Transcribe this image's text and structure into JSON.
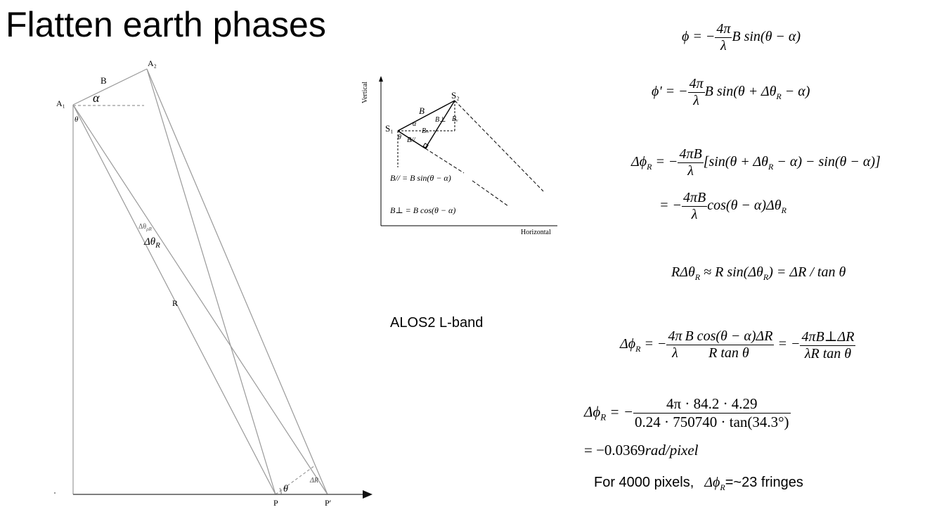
{
  "title": "Flatten earth phases",
  "geometry_diagram": {
    "label_a1": "A₁",
    "label_a2": "A₂",
    "label_b": "B",
    "label_alpha": "α",
    "label_theta_top": "θ",
    "label_dtheta_small": "Δθ",
    "label_dtheta_small_sub": "ρR",
    "label_dtheta": "Δθ",
    "label_dtheta_sub": "R",
    "label_r": "R",
    "label_theta_bottom": "θ",
    "label_dr": "ΔR",
    "label_p": "P",
    "label_p_prime": "P′"
  },
  "baseline_diagram": {
    "axis_vertical": "Vertical",
    "axis_horizontal": "Horizontal",
    "label_s1": "S₁",
    "label_s2": "S₂",
    "label_b": "B",
    "label_alpha": "α",
    "label_theta": "θ",
    "label_b_perp": "B⊥",
    "label_b_h": "Bₕ",
    "label_b_v": "Bᵥ",
    "label_b_par": "B//",
    "formula_b_par": "B// = B sin(θ − α)",
    "formula_b_perp": "B⊥ = B cos(θ − α)"
  },
  "sensor_label": "ALOS2 L-band",
  "equations": {
    "eq1_lhs": "ϕ = −",
    "eq1_num": "4π",
    "eq1_den": "λ",
    "eq1_rhs": "B sin(θ − α)",
    "eq2_lhs": "ϕ' = −",
    "eq2_num": "4π",
    "eq2_den": "λ",
    "eq2_rhs": "B sin(θ + Δθ",
    "eq2_sub": "R",
    "eq2_tail": " − α)",
    "eq3_lhs": "Δϕ",
    "eq3_lhs_sub": "R",
    "eq3_eq": " = −",
    "eq3_num": "4πB",
    "eq3_den": "λ",
    "eq3_rhs": "[sin(θ + Δθ",
    "eq3_rhs_sub": "R",
    "eq3_rhs_tail": " − α) − sin(θ − α)]",
    "eq4_eq": "= −",
    "eq4_num": "4πB",
    "eq4_den": "λ",
    "eq4_rhs": "cos(θ − α)Δθ",
    "eq4_sub": "R",
    "eq5_a": "RΔθ",
    "eq5_a_sub": "R",
    "eq5_b": " ≈ R sin(Δθ",
    "eq5_b_sub": "R",
    "eq5_c": ") = ΔR / tan θ",
    "eq6_lhs": "Δϕ",
    "eq6_lhs_sub": "R",
    "eq6_eq": " = −",
    "eq6_num1": "4π",
    "eq6_den1": "λ",
    "eq6_num2": "B cos(θ − α)ΔR",
    "eq6_den2": "R tan θ",
    "eq6_eq2": " = −",
    "eq6_num3": "4πB⊥ΔR",
    "eq6_den3": "λR tan θ",
    "eq7_lhs": "Δϕ",
    "eq7_lhs_sub": "R",
    "eq7_eq": " = −",
    "eq7_num": "4π · 84.2 · 4.29",
    "eq7_den": "0.24 · 750740 · tan(34.3°)",
    "eq7_result": "= −0.0369",
    "eq7_unit": "rad/pixel"
  },
  "fringe_note": {
    "prefix": "For 4000 pixels,",
    "symbol": "Δϕ",
    "symbol_sub": "R",
    "suffix": "=~23 fringes"
  }
}
